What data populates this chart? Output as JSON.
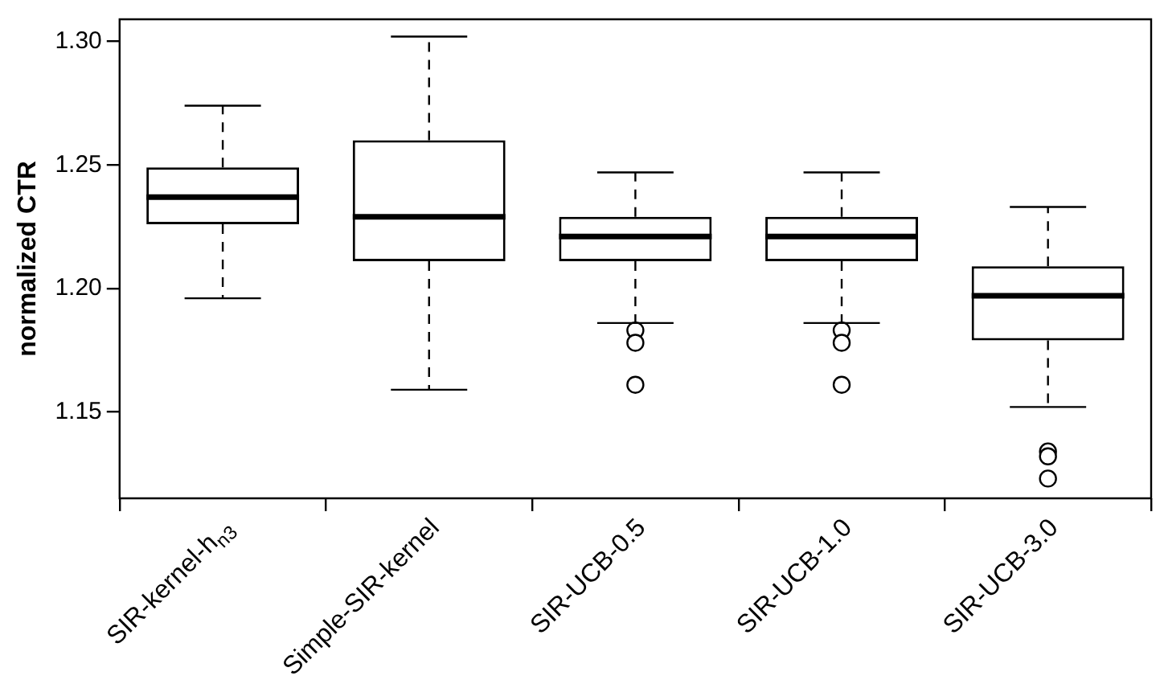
{
  "chart_data": {
    "type": "box",
    "ylabel": "normalized CTR",
    "categories": [
      "SIR-kernel-h$_{n3}$",
      "Simple-SIR-kernel",
      "SIR-UCB-0.5",
      "SIR-UCB-1.0",
      "SIR-UCB-3.0"
    ],
    "boxes": [
      {
        "low": 1.196,
        "q1": 1.226,
        "median": 1.237,
        "q3": 1.249,
        "high": 1.274
      },
      {
        "low": 1.159,
        "q1": 1.211,
        "median": 1.229,
        "q3": 1.26,
        "high": 1.302
      },
      {
        "low": 1.186,
        "q1": 1.211,
        "median": 1.221,
        "q3": 1.229,
        "high": 1.247,
        "outliers": [
          1.183,
          1.178,
          1.161
        ]
      },
      {
        "low": 1.186,
        "q1": 1.211,
        "median": 1.221,
        "q3": 1.229,
        "high": 1.247,
        "outliers": [
          1.183,
          1.178,
          1.161
        ]
      },
      {
        "low": 1.152,
        "q1": 1.179,
        "median": 1.197,
        "q3": 1.209,
        "high": 1.233,
        "outliers": [
          1.134,
          1.132,
          1.123
        ]
      }
    ],
    "ylim": [
      1.115,
      1.309
    ],
    "yticks": [
      1.15,
      {
        "value": 1.2,
        "label": "1.20"
      },
      1.25,
      {
        "value": 1.3,
        "label": "1.30"
      }
    ],
    "grid": false,
    "legend": false
  }
}
